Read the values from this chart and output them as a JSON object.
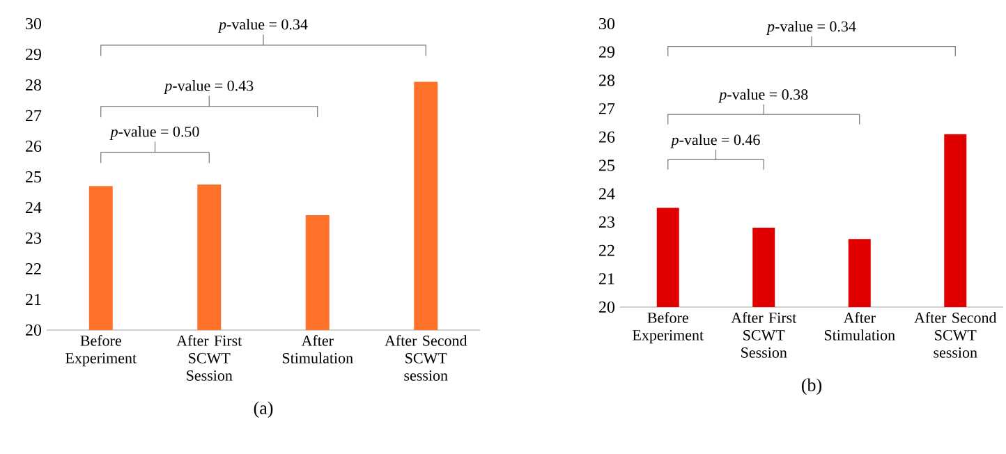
{
  "chart_data": [
    {
      "type": "bar",
      "title": "(a)",
      "categories": [
        "Before Experiment",
        "After First SCWT Session",
        "After Stimulation",
        "After Second SCWT session"
      ],
      "values": [
        24.7,
        24.75,
        23.75,
        28.1
      ],
      "color": "#ff7128",
      "ylim": [
        20,
        30
      ],
      "yticks": [
        20,
        21,
        22,
        23,
        24,
        25,
        26,
        27,
        28,
        29,
        30
      ],
      "annotations": [
        "*p*-value = 0.50",
        "*p*-value = 0.43",
        "*p*-value = 0.34"
      ]
    },
    {
      "type": "bar",
      "title": "(b)",
      "categories": [
        "Before Experiment",
        "After First SCWT Session",
        "After Stimulation",
        "After Second SCWT session"
      ],
      "values": [
        23.5,
        22.8,
        22.4,
        26.1
      ],
      "color": "#e00000",
      "ylim": [
        20,
        30
      ],
      "yticks": [
        20,
        21,
        22,
        23,
        24,
        25,
        26,
        27,
        28,
        29,
        30
      ],
      "annotations": [
        "*p*-value = 0.46",
        "*p*-value = 0.38",
        "*p*-value = 0.34"
      ]
    }
  ]
}
